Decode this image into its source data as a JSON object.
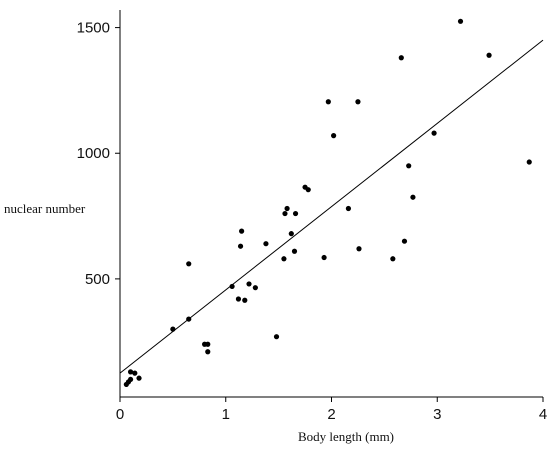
{
  "chart_data": {
    "type": "scatter",
    "title": "",
    "xlabel": "Body length (mm)",
    "ylabel": "nuclear number",
    "xlim": [
      0,
      4
    ],
    "ylim": [
      30,
      1570
    ],
    "xticks": [
      0,
      1,
      2,
      3,
      4
    ],
    "yticks": [
      500,
      1000,
      1500
    ],
    "grid": false,
    "legend": "none",
    "series": [
      {
        "name": "",
        "points": [
          [
            0.06,
            80
          ],
          [
            0.08,
            90
          ],
          [
            0.1,
            100
          ],
          [
            0.1,
            130
          ],
          [
            0.14,
            125
          ],
          [
            0.18,
            105
          ],
          [
            0.5,
            300
          ],
          [
            0.65,
            340
          ],
          [
            0.65,
            560
          ],
          [
            0.8,
            240
          ],
          [
            0.83,
            240
          ],
          [
            0.83,
            210
          ],
          [
            1.06,
            470
          ],
          [
            1.12,
            420
          ],
          [
            1.14,
            630
          ],
          [
            1.15,
            690
          ],
          [
            1.18,
            415
          ],
          [
            1.22,
            480
          ],
          [
            1.28,
            465
          ],
          [
            1.38,
            640
          ],
          [
            1.48,
            270
          ],
          [
            1.55,
            580
          ],
          [
            1.56,
            760
          ],
          [
            1.58,
            780
          ],
          [
            1.62,
            680
          ],
          [
            1.65,
            610
          ],
          [
            1.66,
            760
          ],
          [
            1.75,
            865
          ],
          [
            1.78,
            855
          ],
          [
            1.93,
            585
          ],
          [
            1.97,
            1205
          ],
          [
            2.02,
            1070
          ],
          [
            2.16,
            780
          ],
          [
            2.25,
            1205
          ],
          [
            2.26,
            620
          ],
          [
            2.58,
            580
          ],
          [
            2.66,
            1380
          ],
          [
            2.69,
            650
          ],
          [
            2.73,
            950
          ],
          [
            2.77,
            825
          ],
          [
            2.97,
            1080
          ],
          [
            3.22,
            1525
          ],
          [
            3.49,
            1390
          ],
          [
            3.87,
            965
          ]
        ]
      }
    ],
    "fit_line": {
      "x": [
        0,
        4
      ],
      "y": [
        125,
        1450
      ]
    }
  }
}
